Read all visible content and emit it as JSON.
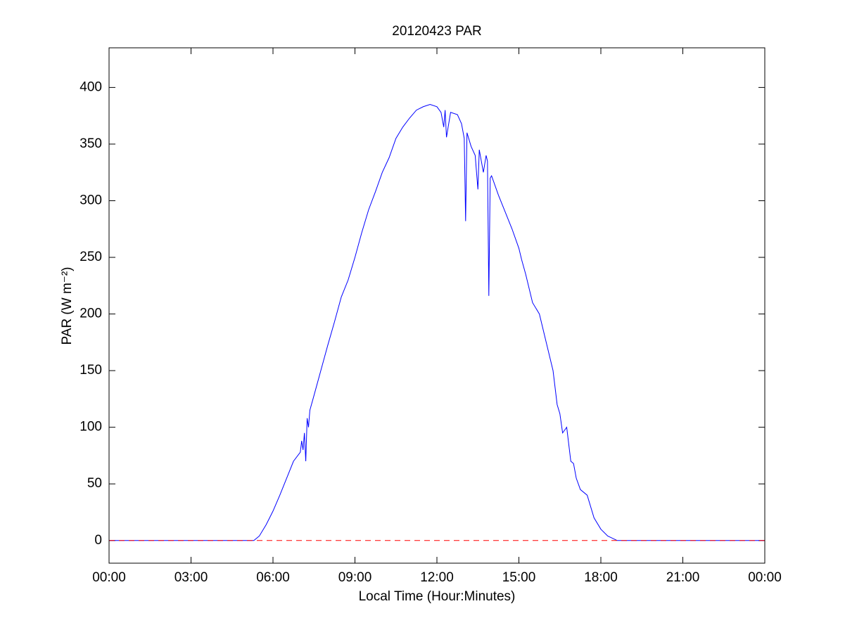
{
  "chart_data": {
    "type": "line",
    "title": "20120423 PAR",
    "xlabel": "Local Time (Hour:Minutes)",
    "ylabel": "PAR (W m⁻²)",
    "xlim": [
      0,
      24
    ],
    "ylim": [
      -20,
      435
    ],
    "xticks": [
      {
        "value": 0,
        "label": "00:00"
      },
      {
        "value": 3,
        "label": "03:00"
      },
      {
        "value": 6,
        "label": "06:00"
      },
      {
        "value": 9,
        "label": "09:00"
      },
      {
        "value": 12,
        "label": "12:00"
      },
      {
        "value": 15,
        "label": "15:00"
      },
      {
        "value": 18,
        "label": "18:00"
      },
      {
        "value": 21,
        "label": "21:00"
      },
      {
        "value": 24,
        "label": "00:00"
      }
    ],
    "yticks": [
      0,
      50,
      100,
      150,
      200,
      250,
      300,
      350,
      400
    ],
    "grid": false,
    "reference_line": {
      "value": 0,
      "color": "#ff0000",
      "style": "dashed"
    },
    "series": [
      {
        "color": "#0000ff",
        "x": [
          0,
          5.3,
          5.5,
          5.75,
          6,
          6.25,
          6.5,
          6.75,
          7,
          7.05,
          7.1,
          7.15,
          7.2,
          7.25,
          7.3,
          7.35,
          7.5,
          7.75,
          8,
          8.25,
          8.5,
          8.75,
          9,
          9.25,
          9.5,
          9.75,
          10,
          10.25,
          10.5,
          10.75,
          11,
          11.25,
          11.5,
          11.75,
          12,
          12.15,
          12.25,
          12.3,
          12.35,
          12.5,
          12.75,
          12.9,
          13,
          13.05,
          13.1,
          13.25,
          13.4,
          13.5,
          13.55,
          13.7,
          13.8,
          13.85,
          13.9,
          13.95,
          14,
          14.25,
          14.5,
          14.75,
          15,
          15.1,
          15.25,
          15.5,
          15.75,
          16,
          16.25,
          16.4,
          16.5,
          16.6,
          16.75,
          16.9,
          17,
          17.1,
          17.25,
          17.5,
          17.75,
          18,
          18.25,
          18.6,
          24
        ],
        "values": [
          0,
          0,
          4,
          14,
          26,
          40,
          55,
          70,
          78,
          88,
          80,
          95,
          70,
          108,
          100,
          115,
          128,
          150,
          172,
          193,
          215,
          230,
          250,
          272,
          292,
          308,
          325,
          338,
          355,
          365,
          373,
          380,
          383,
          385,
          383,
          378,
          365,
          380,
          356,
          378,
          376,
          368,
          355,
          282,
          360,
          348,
          340,
          310,
          345,
          325,
          340,
          335,
          216,
          320,
          322,
          305,
          290,
          275,
          258,
          248,
          235,
          210,
          200,
          175,
          150,
          120,
          112,
          95,
          100,
          70,
          68,
          55,
          45,
          40,
          20,
          10,
          4,
          0,
          0
        ]
      }
    ]
  }
}
